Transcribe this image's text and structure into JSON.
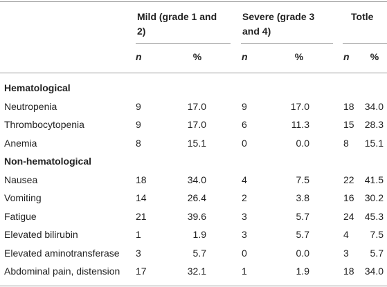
{
  "header": {
    "groups": [
      "Mild (grade 1 and 2)",
      "Severe (grade 3 and 4)",
      "Totle"
    ],
    "subheaders": [
      "n",
      "%",
      "n",
      "%",
      "n",
      "%"
    ]
  },
  "sections": [
    {
      "title": "Hematological",
      "rows": [
        [
          "Neutropenia",
          "9",
          "17.0",
          "9",
          "17.0",
          "18",
          "34.0"
        ],
        [
          "Thrombocytopenia",
          "9",
          "17.0",
          "6",
          "11.3",
          "15",
          "28.3"
        ],
        [
          "Anemia",
          "8",
          "15.1",
          "0",
          "0.0",
          "8",
          "15.1"
        ]
      ]
    },
    {
      "title": "Non-hematological",
      "rows": [
        [
          "Nausea",
          "18",
          "34.0",
          "4",
          "7.5",
          "22",
          "41.5"
        ],
        [
          "Vomiting",
          "14",
          "26.4",
          "2",
          "3.8",
          "16",
          "30.2"
        ],
        [
          "Fatigue",
          "21",
          "39.6",
          "3",
          "5.7",
          "24",
          "45.3"
        ],
        [
          "Elevated bilirubin",
          "1",
          "1.9",
          "3",
          "5.7",
          "4",
          "7.5"
        ],
        [
          "Elevated aminotransferase",
          "3",
          "5.7",
          "0",
          "0.0",
          "3",
          "5.7"
        ],
        [
          "Abdominal pain, distension",
          "17",
          "32.1",
          "1",
          "1.9",
          "18",
          "34.0"
        ]
      ]
    }
  ]
}
